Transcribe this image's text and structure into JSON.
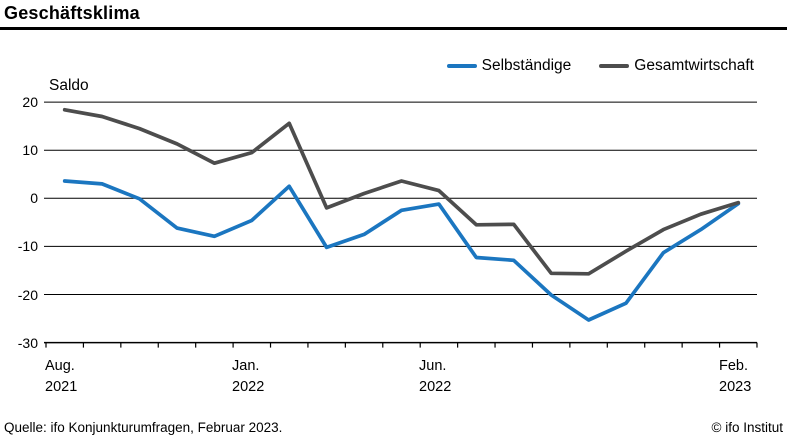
{
  "header": {
    "title": "Geschäftsklima"
  },
  "legend": {
    "items": [
      {
        "label": "Selbständige",
        "color": "#1b76c0"
      },
      {
        "label": "Gesamtwirtschaft",
        "color": "#4d4d4d"
      }
    ]
  },
  "chart_data": {
    "type": "line",
    "title": "Geschäftsklima",
    "ylabel": "Saldo",
    "ylim": [
      -30,
      20
    ],
    "yticks": [
      20,
      10,
      0,
      -10,
      -20,
      -30
    ],
    "grid": true,
    "legend_position": "top-right",
    "x": [
      "Aug. 2021",
      "Sep. 2021",
      "Okt. 2021",
      "Nov. 2021",
      "Dez. 2021",
      "Jan. 2022",
      "Feb. 2022",
      "Mär. 2022",
      "Apr. 2022",
      "Mai 2022",
      "Jun. 2022",
      "Jul. 2022",
      "Aug. 2022",
      "Sep. 2022",
      "Okt. 2022",
      "Nov. 2022",
      "Dez. 2022",
      "Jan. 2023",
      "Feb. 2023"
    ],
    "series": [
      {
        "name": "Selbständige",
        "color": "#1b76c0",
        "values": [
          3.6,
          3.0,
          -0.1,
          -6.2,
          -7.9,
          -4.6,
          2.5,
          -10.2,
          -7.5,
          -2.5,
          -1.2,
          -12.3,
          -12.9,
          -20.1,
          -25.3,
          -21.8,
          -11.3,
          -6.5,
          -1.1
        ]
      },
      {
        "name": "Gesamtwirtschaft",
        "color": "#4d4d4d",
        "values": [
          18.4,
          17.0,
          14.5,
          11.3,
          7.3,
          9.5,
          15.6,
          -2.0,
          1.0,
          3.6,
          1.6,
          -5.5,
          -5.4,
          -15.6,
          -15.7,
          -11.0,
          -6.5,
          -3.3,
          -0.9
        ]
      }
    ],
    "x_tick_labels": [
      {
        "index": 0,
        "month": "Aug.",
        "year": "2021"
      },
      {
        "index": 5,
        "month": "Jan.",
        "year": "2022"
      },
      {
        "index": 10,
        "month": "Jun.",
        "year": "2022"
      },
      {
        "index": 18,
        "month": "Feb.",
        "year": "2023"
      }
    ]
  },
  "footer": {
    "source": "Quelle: ifo Konjunkturumfragen, Februar 2023.",
    "copyright": "© ifo Institut"
  }
}
